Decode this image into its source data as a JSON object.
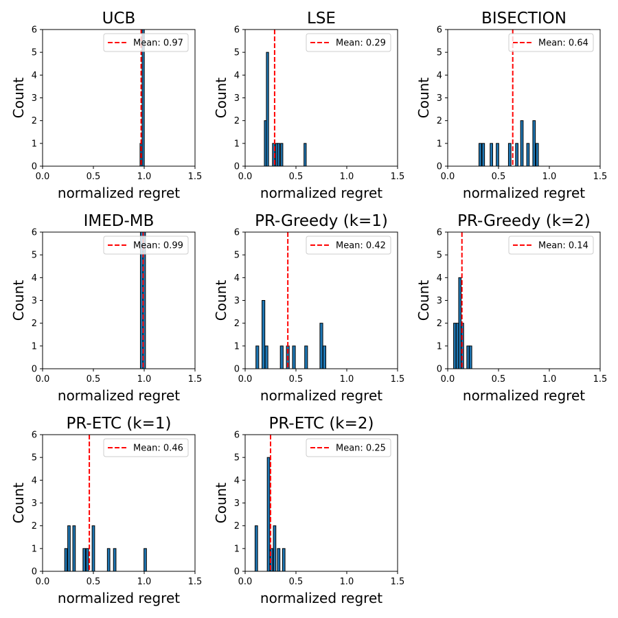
{
  "chart_data": [
    {
      "type": "bar",
      "title": "UCB",
      "xlabel": "normalized regret",
      "ylabel": "Count",
      "xlim": [
        0,
        1.5
      ],
      "ylim": [
        0,
        6
      ],
      "xticks": [
        "0.0",
        "0.5",
        "1.0",
        "1.5"
      ],
      "yticks": [
        "0",
        "1",
        "2",
        "3",
        "4",
        "5",
        "6"
      ],
      "bin_width": 0.022,
      "bins": [
        {
          "x": 0.97,
          "count": 1
        },
        {
          "x": 0.99,
          "count": 6
        }
      ],
      "mean": 0.97,
      "mean_label": "Mean: 0.97"
    },
    {
      "type": "bar",
      "title": "LSE",
      "xlabel": "normalized regret",
      "ylabel": "Count",
      "xlim": [
        0,
        1.5
      ],
      "ylim": [
        0,
        6
      ],
      "xticks": [
        "0.0",
        "0.5",
        "1.0",
        "1.5"
      ],
      "yticks": [
        "0",
        "1",
        "2",
        "3",
        "4",
        "5",
        "6"
      ],
      "bin_width": 0.022,
      "bins": [
        {
          "x": 0.2,
          "count": 2
        },
        {
          "x": 0.22,
          "count": 5
        },
        {
          "x": 0.28,
          "count": 1
        },
        {
          "x": 0.31,
          "count": 1
        },
        {
          "x": 0.33,
          "count": 1
        },
        {
          "x": 0.36,
          "count": 1
        },
        {
          "x": 0.59,
          "count": 1
        }
      ],
      "mean": 0.29,
      "mean_label": "Mean: 0.29"
    },
    {
      "type": "bar",
      "title": "BISECTION",
      "xlabel": "normalized regret",
      "ylabel": "Count",
      "xlim": [
        0,
        1.5
      ],
      "ylim": [
        0,
        6
      ],
      "xticks": [
        "0.0",
        "0.5",
        "1.0",
        "1.5"
      ],
      "yticks": [
        "0",
        "1",
        "2",
        "3",
        "4",
        "5",
        "6"
      ],
      "bin_width": 0.025,
      "bins": [
        {
          "x": 0.32,
          "count": 1
        },
        {
          "x": 0.35,
          "count": 1
        },
        {
          "x": 0.43,
          "count": 1
        },
        {
          "x": 0.49,
          "count": 1
        },
        {
          "x": 0.61,
          "count": 1
        },
        {
          "x": 0.68,
          "count": 1
        },
        {
          "x": 0.73,
          "count": 2
        },
        {
          "x": 0.79,
          "count": 1
        },
        {
          "x": 0.85,
          "count": 2
        },
        {
          "x": 0.88,
          "count": 1
        }
      ],
      "mean": 0.64,
      "mean_label": "Mean: 0.64"
    },
    {
      "type": "bar",
      "title": "IMED-MB",
      "xlabel": "normalized regret",
      "ylabel": "Count",
      "xlim": [
        0,
        1.5
      ],
      "ylim": [
        0,
        6
      ],
      "xticks": [
        "0.0",
        "0.5",
        "1.0",
        "1.5"
      ],
      "yticks": [
        "0",
        "1",
        "2",
        "3",
        "4",
        "5",
        "6"
      ],
      "bin_width": 0.025,
      "bins": [
        {
          "x": 0.975,
          "count": 6
        },
        {
          "x": 1.0,
          "count": 6
        }
      ],
      "mean": 0.99,
      "mean_label": "Mean: 0.99"
    },
    {
      "type": "bar",
      "title": "PR-Greedy (k=1)",
      "xlabel": "normalized regret",
      "ylabel": "Count",
      "xlim": [
        0,
        1.5
      ],
      "ylim": [
        0,
        6
      ],
      "xticks": [
        "0.0",
        "0.5",
        "1.0",
        "1.5"
      ],
      "yticks": [
        "0",
        "1",
        "2",
        "3",
        "4",
        "5",
        "6"
      ],
      "bin_width": 0.028,
      "bins": [
        {
          "x": 0.12,
          "count": 1
        },
        {
          "x": 0.18,
          "count": 3
        },
        {
          "x": 0.21,
          "count": 1
        },
        {
          "x": 0.36,
          "count": 1
        },
        {
          "x": 0.42,
          "count": 1
        },
        {
          "x": 0.48,
          "count": 1
        },
        {
          "x": 0.6,
          "count": 1
        },
        {
          "x": 0.75,
          "count": 2
        },
        {
          "x": 0.78,
          "count": 1
        }
      ],
      "mean": 0.42,
      "mean_label": "Mean: 0.42"
    },
    {
      "type": "bar",
      "title": "PR-Greedy (k=2)",
      "xlabel": "normalized regret",
      "ylabel": "Count",
      "xlim": [
        0,
        1.5
      ],
      "ylim": [
        0,
        6
      ],
      "xticks": [
        "0.0",
        "0.5",
        "1.0",
        "1.5"
      ],
      "yticks": [
        "0",
        "1",
        "2",
        "3",
        "4",
        "5",
        "6"
      ],
      "bin_width": 0.024,
      "bins": [
        {
          "x": 0.07,
          "count": 2
        },
        {
          "x": 0.095,
          "count": 2
        },
        {
          "x": 0.12,
          "count": 4
        },
        {
          "x": 0.145,
          "count": 2
        },
        {
          "x": 0.2,
          "count": 1
        },
        {
          "x": 0.225,
          "count": 1
        }
      ],
      "mean": 0.14,
      "mean_label": "Mean: 0.14"
    },
    {
      "type": "bar",
      "title": "PR-ETC (k=1)",
      "xlabel": "normalized regret",
      "ylabel": "Count",
      "xlim": [
        0,
        1.5
      ],
      "ylim": [
        0,
        6
      ],
      "xticks": [
        "0.0",
        "0.5",
        "1.0",
        "1.5"
      ],
      "yticks": [
        "0",
        "1",
        "2",
        "3",
        "4",
        "5",
        "6"
      ],
      "bin_width": 0.025,
      "bins": [
        {
          "x": 0.23,
          "count": 1
        },
        {
          "x": 0.26,
          "count": 2
        },
        {
          "x": 0.31,
          "count": 2
        },
        {
          "x": 0.41,
          "count": 1
        },
        {
          "x": 0.44,
          "count": 1
        },
        {
          "x": 0.5,
          "count": 2
        },
        {
          "x": 0.65,
          "count": 1
        },
        {
          "x": 0.71,
          "count": 1
        },
        {
          "x": 1.01,
          "count": 1
        }
      ],
      "mean": 0.46,
      "mean_label": "Mean: 0.46"
    },
    {
      "type": "bar",
      "title": "PR-ETC (k=2)",
      "xlabel": "normalized regret",
      "ylabel": "Count",
      "xlim": [
        0,
        1.5
      ],
      "ylim": [
        0,
        6
      ],
      "xticks": [
        "0.0",
        "0.5",
        "1.0",
        "1.5"
      ],
      "yticks": [
        "0",
        "1",
        "2",
        "3",
        "4",
        "5",
        "6"
      ],
      "bin_width": 0.025,
      "bins": [
        {
          "x": 0.11,
          "count": 2
        },
        {
          "x": 0.23,
          "count": 5
        },
        {
          "x": 0.26,
          "count": 1
        },
        {
          "x": 0.29,
          "count": 2
        },
        {
          "x": 0.33,
          "count": 1
        },
        {
          "x": 0.38,
          "count": 1
        }
      ],
      "mean": 0.25,
      "mean_label": "Mean: 0.25"
    }
  ],
  "colors": {
    "bar_fill": "#1f77b4",
    "bar_edge": "#000000",
    "mean_line": "#ff0000",
    "legend_border": "#cccccc"
  }
}
